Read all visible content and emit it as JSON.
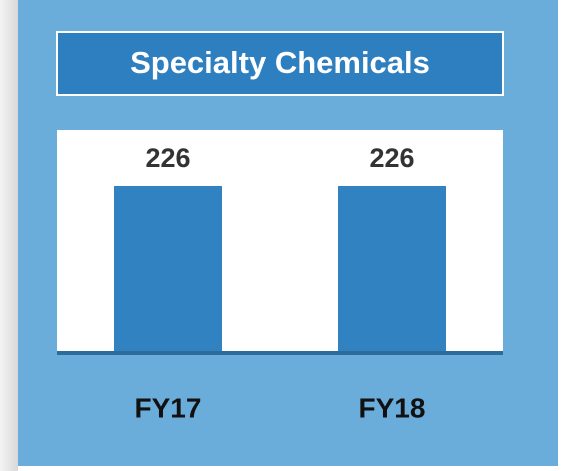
{
  "chart_data": {
    "type": "bar",
    "title": "Specialty Chemicals",
    "categories": [
      "FY17",
      "FY18"
    ],
    "values": [
      226,
      226
    ],
    "color": "#3182c0"
  }
}
